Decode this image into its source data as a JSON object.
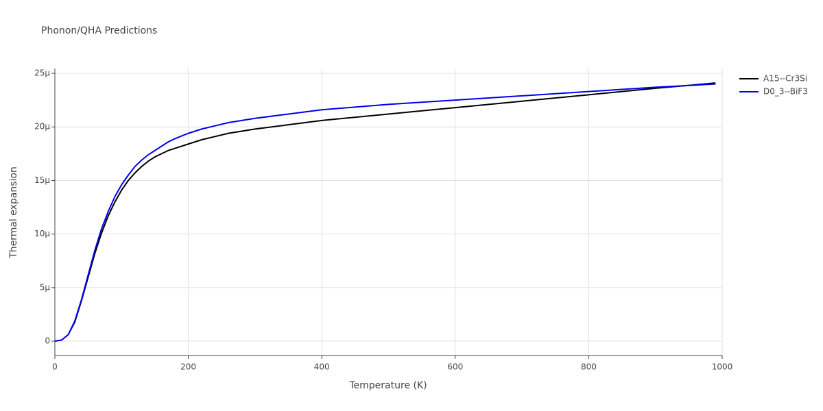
{
  "chart_data": {
    "type": "line",
    "title": "Phonon/QHA Predictions",
    "x_label": "Temperature (K)",
    "y_label": "Thermal expansion",
    "x": [
      0,
      10,
      20,
      30,
      40,
      50,
      60,
      70,
      80,
      90,
      100,
      110,
      120,
      130,
      140,
      150,
      160,
      170,
      180,
      200,
      220,
      240,
      260,
      300,
      350,
      400,
      500,
      600,
      700,
      800,
      900,
      990
    ],
    "series": [
      {
        "name": "A15--Cr3Si",
        "color": "#000000",
        "values": [
          0,
          1e-07,
          6e-07,
          1.8e-06,
          3.8e-06,
          6e-06,
          8.2e-06,
          1.01e-05,
          1.17e-05,
          1.3e-05,
          1.41e-05,
          1.5e-05,
          1.57e-05,
          1.63e-05,
          1.68e-05,
          1.72e-05,
          1.75e-05,
          1.78e-05,
          1.8e-05,
          1.84e-05,
          1.88e-05,
          1.91e-05,
          1.94e-05,
          1.98e-05,
          2.02e-05,
          2.06e-05,
          2.12e-05,
          2.18e-05,
          2.24e-05,
          2.3e-05,
          2.36e-05,
          2.41e-05
        ]
      },
      {
        "name": "D0_3--BiF3",
        "color": "#0000ee",
        "values": [
          0,
          1e-07,
          6e-07,
          1.9e-06,
          3.9e-06,
          6.2e-06,
          8.5e-06,
          1.05e-05,
          1.21e-05,
          1.35e-05,
          1.46e-05,
          1.55e-05,
          1.63e-05,
          1.69e-05,
          1.74e-05,
          1.78e-05,
          1.82e-05,
          1.86e-05,
          1.89e-05,
          1.94e-05,
          1.98e-05,
          2.01e-05,
          2.04e-05,
          2.08e-05,
          2.12e-05,
          2.16e-05,
          2.21e-05,
          2.25e-05,
          2.29e-05,
          2.33e-05,
          2.37e-05,
          2.4e-05
        ]
      }
    ],
    "xlim": [
      0,
      1000
    ],
    "xticks": [
      0,
      200,
      400,
      600,
      800,
      1000
    ],
    "ylim": [
      -1.34e-06,
      2.545e-05
    ],
    "yticks": [
      0,
      {
        "value": 5e-06,
        "label": "5μ"
      },
      {
        "value": 1e-05,
        "label": "10μ"
      },
      {
        "value": 1.5e-05,
        "label": "15μ"
      },
      {
        "value": 2e-05,
        "label": "20μ"
      },
      {
        "value": 2.5e-05,
        "label": "25μ"
      }
    ],
    "grid": true,
    "legend": "top-right"
  }
}
